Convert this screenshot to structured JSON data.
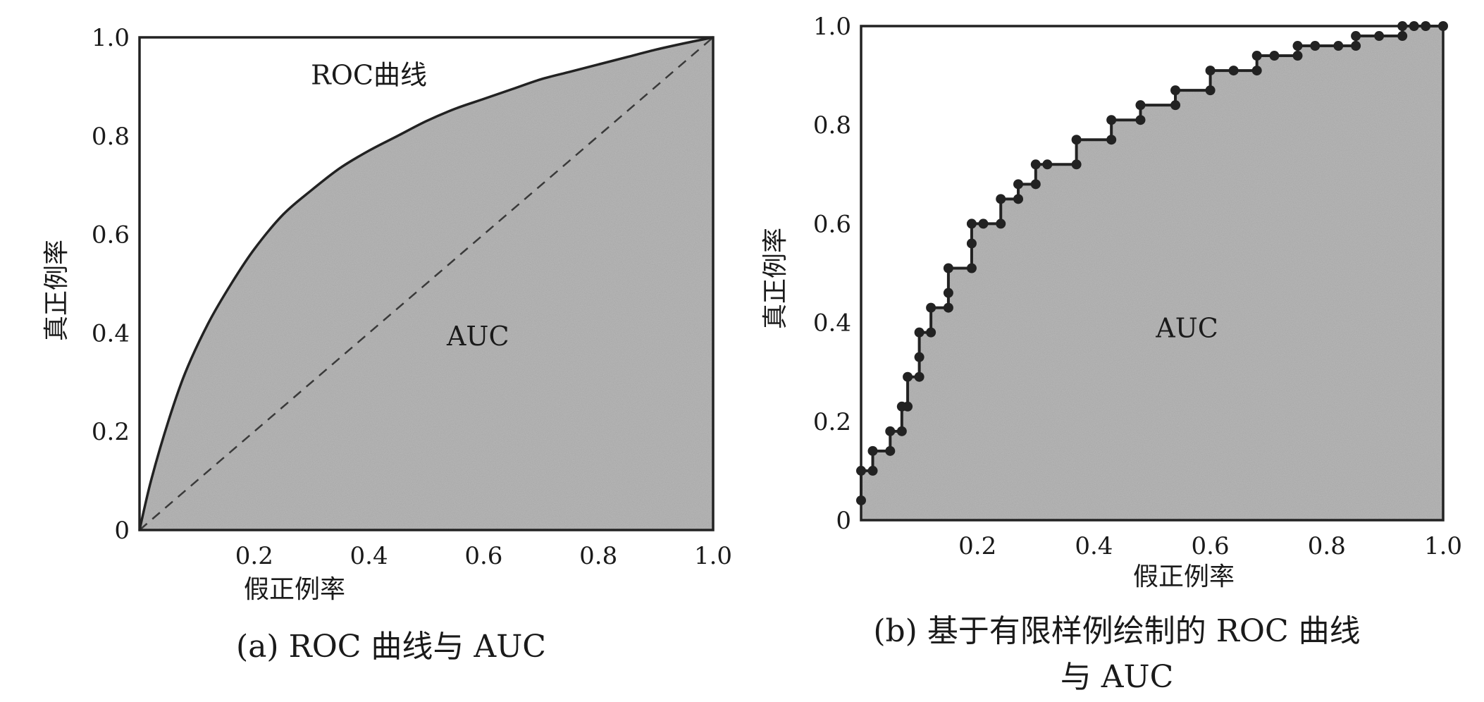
{
  "chart_data": [
    {
      "type": "area",
      "id": "a",
      "caption": "(a) ROC 曲线与 AUC",
      "xlabel": "假正例率",
      "ylabel": "真正例率",
      "xlim": [
        0,
        1
      ],
      "ylim": [
        0,
        1
      ],
      "x_ticks": [
        {
          "v": 0.2,
          "t": "0.2"
        },
        {
          "v": 0.4,
          "t": "0.4"
        },
        {
          "v": 0.6,
          "t": "0.6"
        },
        {
          "v": 0.8,
          "t": "0.8"
        },
        {
          "v": 1.0,
          "t": "1.0"
        }
      ],
      "y_ticks": [
        {
          "v": 0,
          "t": "0"
        },
        {
          "v": 0.2,
          "t": "0.2"
        },
        {
          "v": 0.4,
          "t": "0.4"
        },
        {
          "v": 0.6,
          "t": "0.6"
        },
        {
          "v": 0.8,
          "t": "0.8"
        },
        {
          "v": 1.0,
          "t": "1.0"
        }
      ],
      "annotations": [
        {
          "text": "ROC曲线",
          "x": 0.4,
          "y": 0.905
        },
        {
          "text": "AUC",
          "x": 0.59,
          "y": 0.375
        }
      ],
      "roc_curve": {
        "x": [
          0,
          0.02,
          0.05,
          0.08,
          0.12,
          0.16,
          0.2,
          0.25,
          0.3,
          0.35,
          0.4,
          0.45,
          0.5,
          0.55,
          0.6,
          0.65,
          0.7,
          0.75,
          0.8,
          0.85,
          0.9,
          0.95,
          1.0
        ],
        "y": [
          0,
          0.1,
          0.22,
          0.32,
          0.42,
          0.5,
          0.57,
          0.64,
          0.69,
          0.735,
          0.77,
          0.8,
          0.83,
          0.855,
          0.875,
          0.895,
          0.915,
          0.93,
          0.945,
          0.96,
          0.975,
          0.988,
          1.0
        ]
      },
      "diagonal": {
        "x": [
          0,
          1
        ],
        "y": [
          0,
          1
        ]
      },
      "grid": false
    },
    {
      "type": "area",
      "id": "b",
      "caption": "(b) 基于有限样例绘制的 ROC 曲线",
      "caption2": "与 AUC",
      "xlabel": "假正例率",
      "ylabel": "真正例率",
      "xlim": [
        0,
        1
      ],
      "ylim": [
        0,
        1
      ],
      "x_ticks": [
        {
          "v": 0.2,
          "t": "0.2"
        },
        {
          "v": 0.4,
          "t": "0.4"
        },
        {
          "v": 0.6,
          "t": "0.6"
        },
        {
          "v": 0.8,
          "t": "0.8"
        },
        {
          "v": 1.0,
          "t": "1.0"
        }
      ],
      "y_ticks": [
        {
          "v": 0,
          "t": "0"
        },
        {
          "v": 0.2,
          "t": "0.2"
        },
        {
          "v": 0.4,
          "t": "0.4"
        },
        {
          "v": 0.6,
          "t": "0.6"
        },
        {
          "v": 0.8,
          "t": "0.8"
        },
        {
          "v": 1.0,
          "t": "1.0"
        }
      ],
      "annotations": [
        {
          "text": "AUC",
          "x": 0.56,
          "y": 0.37
        }
      ],
      "points": [
        [
          0,
          0.04
        ],
        [
          0,
          0.1
        ],
        [
          0.02,
          0.1
        ],
        [
          0.02,
          0.14
        ],
        [
          0.05,
          0.14
        ],
        [
          0.05,
          0.18
        ],
        [
          0.07,
          0.18
        ],
        [
          0.07,
          0.23
        ],
        [
          0.08,
          0.23
        ],
        [
          0.08,
          0.29
        ],
        [
          0.1,
          0.29
        ],
        [
          0.1,
          0.33
        ],
        [
          0.1,
          0.38
        ],
        [
          0.12,
          0.38
        ],
        [
          0.12,
          0.43
        ],
        [
          0.15,
          0.43
        ],
        [
          0.15,
          0.46
        ],
        [
          0.15,
          0.51
        ],
        [
          0.19,
          0.51
        ],
        [
          0.19,
          0.56
        ],
        [
          0.19,
          0.6
        ],
        [
          0.21,
          0.6
        ],
        [
          0.24,
          0.6
        ],
        [
          0.24,
          0.65
        ],
        [
          0.27,
          0.65
        ],
        [
          0.27,
          0.68
        ],
        [
          0.3,
          0.68
        ],
        [
          0.3,
          0.72
        ],
        [
          0.32,
          0.72
        ],
        [
          0.37,
          0.72
        ],
        [
          0.37,
          0.77
        ],
        [
          0.43,
          0.77
        ],
        [
          0.43,
          0.81
        ],
        [
          0.48,
          0.81
        ],
        [
          0.48,
          0.84
        ],
        [
          0.54,
          0.84
        ],
        [
          0.54,
          0.87
        ],
        [
          0.6,
          0.87
        ],
        [
          0.6,
          0.91
        ],
        [
          0.64,
          0.91
        ],
        [
          0.68,
          0.91
        ],
        [
          0.68,
          0.94
        ],
        [
          0.71,
          0.94
        ],
        [
          0.75,
          0.94
        ],
        [
          0.75,
          0.96
        ],
        [
          0.78,
          0.96
        ],
        [
          0.82,
          0.96
        ],
        [
          0.85,
          0.96
        ],
        [
          0.85,
          0.98
        ],
        [
          0.89,
          0.98
        ],
        [
          0.93,
          0.98
        ],
        [
          0.93,
          1.0
        ],
        [
          0.95,
          1.0
        ],
        [
          0.97,
          1.0
        ],
        [
          1.0,
          1.0
        ]
      ],
      "grid": false
    }
  ]
}
